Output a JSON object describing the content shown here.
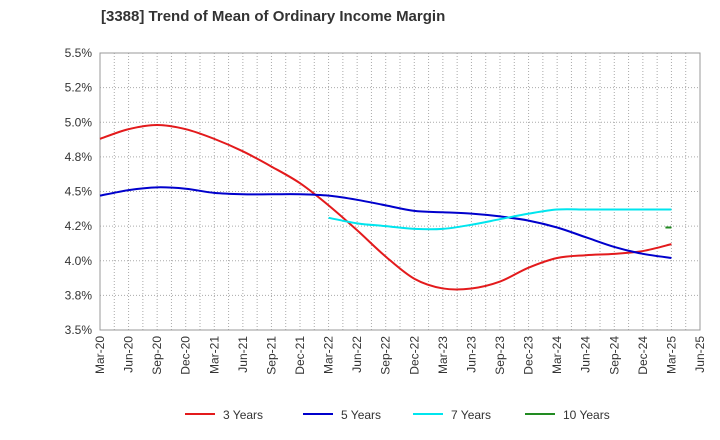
{
  "chart_data": {
    "type": "line",
    "title": "[3388]  Trend of Mean of Ordinary Income Margin",
    "xlabel": "",
    "ylabel": "",
    "x": [
      "Mar-20",
      "Jun-20",
      "Sep-20",
      "Dec-20",
      "Mar-21",
      "Jun-21",
      "Sep-21",
      "Dec-21",
      "Mar-22",
      "Jun-22",
      "Sep-22",
      "Dec-22",
      "Mar-23",
      "Jun-23",
      "Sep-23",
      "Dec-23",
      "Mar-24",
      "Jun-24",
      "Sep-24",
      "Dec-24",
      "Mar-25",
      "Jun-25"
    ],
    "ylim": [
      3.5,
      5.5
    ],
    "yticks": [
      "3.5%",
      "3.8%",
      "4.0%",
      "4.2%",
      "4.5%",
      "4.8%",
      "5.0%",
      "5.2%",
      "5.5%"
    ],
    "grid": true,
    "legend_position": "bottom",
    "series": [
      {
        "name": "3 Years",
        "color": "#e31a1c",
        "values": [
          4.88,
          4.95,
          4.98,
          4.95,
          4.88,
          4.79,
          4.68,
          4.56,
          4.4,
          4.22,
          4.03,
          3.87,
          3.8,
          3.8,
          3.85,
          3.95,
          4.02,
          4.04,
          4.05,
          4.07,
          4.12,
          null
        ]
      },
      {
        "name": "5 Years",
        "color": "#0000cc",
        "values": [
          4.47,
          4.51,
          4.53,
          4.52,
          4.49,
          4.48,
          4.48,
          4.48,
          4.47,
          4.44,
          4.4,
          4.36,
          4.35,
          4.34,
          4.32,
          4.29,
          4.24,
          4.17,
          4.1,
          4.05,
          4.02,
          null
        ]
      },
      {
        "name": "7 Years",
        "color": "#00e5ee",
        "values": [
          null,
          null,
          null,
          null,
          null,
          null,
          null,
          null,
          4.31,
          4.27,
          4.25,
          4.23,
          4.23,
          4.26,
          4.3,
          4.34,
          4.37,
          4.37,
          4.37,
          4.37,
          4.37,
          null
        ]
      },
      {
        "name": "10 Years",
        "color": "#228b22",
        "values": [
          null,
          null,
          null,
          null,
          null,
          null,
          null,
          null,
          null,
          null,
          null,
          null,
          null,
          null,
          null,
          null,
          null,
          null,
          null,
          null,
          4.24,
          null
        ]
      }
    ]
  }
}
